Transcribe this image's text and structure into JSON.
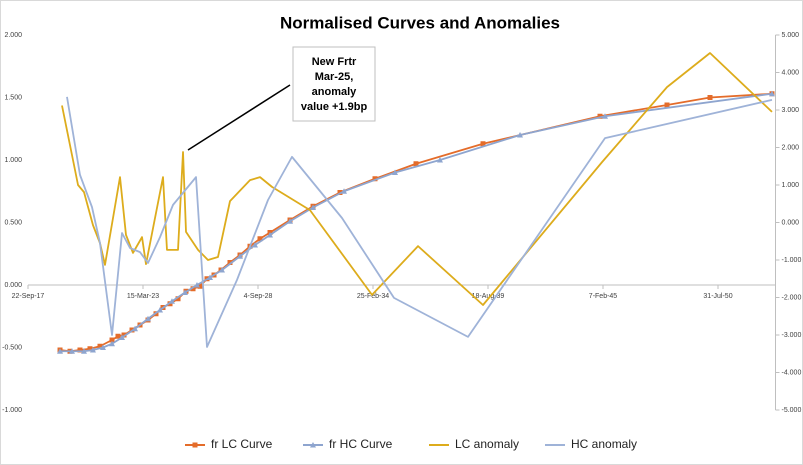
{
  "chart_data": {
    "type": "line",
    "title": "Normalised Curves and Anomalies",
    "annotation": [
      "New Frtr",
      "Mar-25,",
      "anomaly",
      "value +1.9bp"
    ],
    "xlim": [
      43000,
      56000
    ],
    "xticks": [
      {
        "value": 43000,
        "label": "22-Sep-17"
      },
      {
        "value": 45000,
        "label": "15-Mar-23"
      },
      {
        "value": 47000,
        "label": "4-Sep-28"
      },
      {
        "value": 49000,
        "label": "25-Feb-34"
      },
      {
        "value": 51000,
        "label": "18-Aug-39"
      },
      {
        "value": 53000,
        "label": "7-Feb-45"
      },
      {
        "value": 55000,
        "label": "31-Jul-50"
      }
    ],
    "ylim": [
      -1,
      2
    ],
    "yticks": [
      {
        "value": -1,
        "label": "-1.000"
      },
      {
        "value": -0.5,
        "label": "-0.500"
      },
      {
        "value": 0,
        "label": "0.000"
      },
      {
        "value": 0.5,
        "label": "0.500"
      },
      {
        "value": 1,
        "label": "1.000"
      },
      {
        "value": 1.5,
        "label": "1.500"
      },
      {
        "value": 2,
        "label": "2.000"
      }
    ],
    "y2lim": [
      -5,
      5
    ],
    "y2ticks": [
      {
        "value": -5,
        "label": "-5.000"
      },
      {
        "value": -4,
        "label": "-4.000"
      },
      {
        "value": -3,
        "label": "-3.000"
      },
      {
        "value": -2,
        "label": "-2.000"
      },
      {
        "value": -1,
        "label": "-1.000"
      },
      {
        "value": 0,
        "label": "0.000"
      },
      {
        "value": 1,
        "label": "1.000"
      },
      {
        "value": 2,
        "label": "2.000"
      },
      {
        "value": 3,
        "label": "3.000"
      },
      {
        "value": 4,
        "label": "4.000"
      },
      {
        "value": 5,
        "label": "5.000"
      }
    ],
    "grid": false,
    "legend": "bottom",
    "series": [
      {
        "name": "fr LC Curve",
        "color": "#e46c2a",
        "marker": "square",
        "x": [
          43557,
          43730,
          43904,
          44078,
          44252,
          44461,
          44565,
          44670,
          44809,
          44948,
          45087,
          45226,
          45348,
          45470,
          45609,
          45748,
          45870,
          45991,
          46113,
          46235,
          46357,
          46513,
          46687,
          46861,
          47035,
          47209,
          47557,
          47957,
          48426,
          49035,
          49748,
          50913,
          52948,
          54113,
          54861,
          55939
        ],
        "values": [
          -0.52,
          -0.53,
          -0.52,
          -0.51,
          -0.49,
          -0.44,
          -0.41,
          -0.4,
          -0.36,
          -0.32,
          -0.28,
          -0.23,
          -0.18,
          -0.15,
          -0.11,
          -0.05,
          -0.03,
          -0.01,
          0.05,
          0.08,
          0.12,
          0.18,
          0.24,
          0.31,
          0.37,
          0.42,
          0.52,
          0.63,
          0.74,
          0.85,
          0.97,
          1.13,
          1.35,
          1.44,
          1.5,
          1.53
        ]
      },
      {
        "name": "fr HC Curve",
        "color": "#8ea5cf",
        "marker": "triangle",
        "x": [
          43557,
          43765,
          43974,
          44130,
          44304,
          44461,
          44635,
          44861,
          45087,
          45296,
          45504,
          45730,
          45939,
          46165,
          46374,
          46687,
          46948,
          47209,
          47557,
          47957,
          48496,
          49383,
          50165,
          51557,
          53035,
          55939
        ],
        "values": [
          -0.53,
          -0.53,
          -0.53,
          -0.52,
          -0.5,
          -0.47,
          -0.42,
          -0.35,
          -0.27,
          -0.2,
          -0.13,
          -0.06,
          0,
          0.06,
          0.12,
          0.23,
          0.32,
          0.4,
          0.51,
          0.62,
          0.75,
          0.9,
          1,
          1.2,
          1.35,
          1.53
        ]
      },
      {
        "name": "LC anomaly",
        "color": "#ddac1c",
        "axis": "y2",
        "x": [
          43591,
          43765,
          43870,
          43974,
          44130,
          44252,
          44339,
          44600,
          44704,
          44826,
          44983,
          45052,
          45348,
          45417,
          45609,
          45696,
          45748,
          45957,
          46130,
          46304,
          46513,
          46861,
          47035,
          47243,
          47904,
          48983,
          49783,
          50913,
          52983,
          54113,
          54861,
          55939
        ],
        "values": [
          3.12,
          1.8,
          1.0,
          0.81,
          -0.07,
          -0.55,
          -1.13,
          1.21,
          -0.33,
          -0.81,
          -0.39,
          -1.11,
          1.21,
          -0.73,
          -0.73,
          1.88,
          -0.25,
          -0.73,
          -1.0,
          -0.92,
          0.57,
          1.13,
          1.21,
          0.95,
          0.33,
          -1.93,
          -0.63,
          -2.2,
          1.61,
          3.61,
          4.52,
          2.95
        ]
      },
      {
        "name": "HC anomaly",
        "color": "#9fb3d8",
        "axis": "y2",
        "x": [
          43678,
          43904,
          44113,
          44252,
          44461,
          44635,
          44774,
          44948,
          45087,
          45296,
          45522,
          45922,
          46113,
          46635,
          47174,
          47591,
          48461,
          49365,
          50652,
          53035,
          55939
        ],
        "values": [
          3.35,
          1.27,
          0.41,
          -0.55,
          -3.0,
          -0.28,
          -0.68,
          -0.79,
          -1.08,
          -0.39,
          0.47,
          1.21,
          -3.32,
          -1.53,
          0.6,
          1.75,
          0.12,
          -2.01,
          -3.05,
          2.25,
          3.27
        ]
      }
    ]
  }
}
